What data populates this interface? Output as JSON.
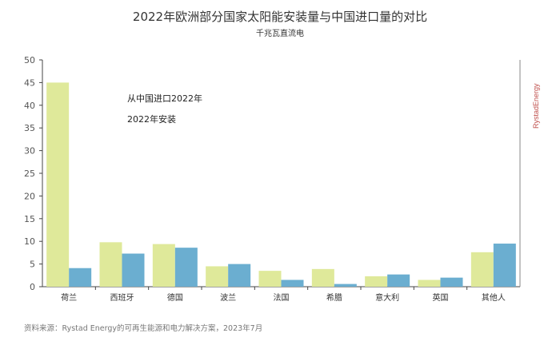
{
  "title": "2022年欧洲部分国家太阳能安装量与中国进口量的对比",
  "subtitle": "千兆瓦直流电",
  "brand": "RystadEnergy",
  "source_note": "资料来源：Rystad Energy的可再生能源和电力解决方案，2023年7月",
  "colors": {
    "import": "#dfe99a",
    "installed": "#6baed0",
    "axis": "#444444",
    "brand": "#c0504d"
  },
  "chart_data": {
    "type": "bar",
    "title": "2022年欧洲部分国家太阳能安装量与中国进口量的对比",
    "subtitle": "千兆瓦直流电",
    "xlabel": "",
    "ylabel": "千兆瓦直流电",
    "ylim": [
      0,
      50
    ],
    "yticks": [
      0,
      5,
      10,
      15,
      20,
      25,
      30,
      35,
      40,
      45,
      50
    ],
    "grid": false,
    "legend": "top-left",
    "categories": [
      "荷兰",
      "西班牙",
      "德国",
      "波兰",
      "法国",
      "希腊",
      "意大利",
      "英国",
      "其他人"
    ],
    "series": [
      {
        "name": "从中国进口2022年",
        "values": [
          45,
          9.8,
          9.4,
          4.5,
          3.5,
          3.9,
          2.3,
          1.5,
          7.6
        ]
      },
      {
        "name": "2022年安装",
        "values": [
          4.1,
          7.3,
          8.6,
          5.0,
          1.5,
          0.6,
          2.7,
          2.0,
          9.5
        ]
      }
    ]
  }
}
